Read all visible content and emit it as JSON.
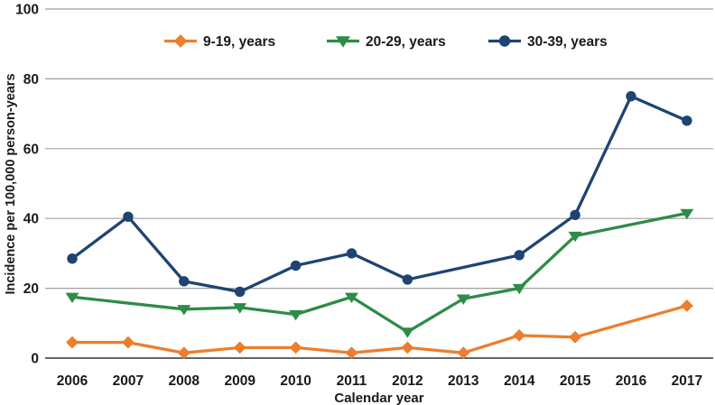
{
  "chart_data": {
    "type": "line",
    "xlabel": "Calendar year",
    "ylabel": "Incidence per 100,000 person-years",
    "x": [
      2006,
      2007,
      2008,
      2009,
      2010,
      2011,
      2012,
      2013,
      2014,
      2015,
      2016,
      2017
    ],
    "yticks": [
      0,
      20,
      40,
      60,
      80,
      100
    ],
    "ylim": [
      0,
      100
    ],
    "grid": true,
    "legend_position": "top-center-inside",
    "gridline_color": "#a0a0a0",
    "axis_line_color": "#4f4f4f",
    "text_color": "#1a1a1a",
    "series": [
      {
        "name": "9-19, years",
        "color": "#ec7e2e",
        "marker": "diamond",
        "values": [
          4.5,
          4.5,
          1.5,
          3,
          3,
          1.5,
          3,
          1.5,
          6.5,
          6,
          null,
          15
        ]
      },
      {
        "name": "20-29, years",
        "color": "#2e8b48",
        "marker": "triangle-down",
        "values": [
          17.5,
          null,
          14,
          14.5,
          12.5,
          17.5,
          7.5,
          17,
          20,
          35,
          null,
          41.5
        ]
      },
      {
        "name": "30-39, years",
        "color": "#1e4472",
        "marker": "circle",
        "values": [
          28.5,
          40.5,
          22,
          19,
          26.5,
          30,
          22.5,
          null,
          29.5,
          41,
          75,
          68
        ]
      }
    ]
  }
}
